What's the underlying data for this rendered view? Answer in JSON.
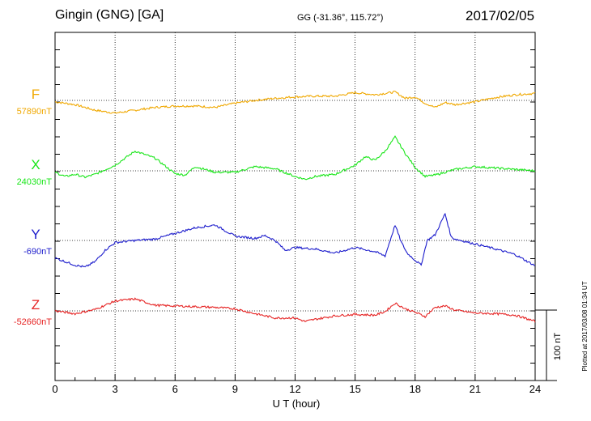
{
  "header": {
    "station": "Gingin (GNG)  [GA]",
    "coords": "GG (-31.36°, 115.72°)",
    "date": "2017/02/05"
  },
  "footer_note": "Plotted at 2017/03/08 01:34 UT",
  "scale_bar_label": "100 nT",
  "chart_data": {
    "type": "line",
    "xlabel": "U T (hour)",
    "xlim": [
      0,
      24
    ],
    "xticks": [
      "0",
      "3",
      "6",
      "9",
      "12",
      "15",
      "18",
      "21",
      "24"
    ],
    "grid": "dotted vertical every 3 h, horizontal baseline per component",
    "scale_nT_per_band": 100,
    "series": [
      {
        "name": "F",
        "baseline_label": "57890nT",
        "color": "#f0a800",
        "points": [
          [
            0,
            -2
          ],
          [
            1,
            -6
          ],
          [
            2,
            -14
          ],
          [
            3,
            -18
          ],
          [
            4,
            -14
          ],
          [
            5,
            -10
          ],
          [
            6,
            -8
          ],
          [
            7,
            -8
          ],
          [
            8,
            -10
          ],
          [
            9,
            -4
          ],
          [
            10,
            0
          ],
          [
            11,
            3
          ],
          [
            12,
            5
          ],
          [
            13,
            6
          ],
          [
            14,
            6
          ],
          [
            15,
            11
          ],
          [
            16,
            8
          ],
          [
            17,
            12
          ],
          [
            17.5,
            3
          ],
          [
            18,
            5
          ],
          [
            18.5,
            -4
          ],
          [
            19,
            -10
          ],
          [
            19.5,
            -3
          ],
          [
            20,
            -6
          ],
          [
            21,
            -2
          ],
          [
            22,
            4
          ],
          [
            23,
            8
          ],
          [
            24,
            10
          ]
        ]
      },
      {
        "name": "X",
        "baseline_label": "24030nT",
        "color": "#19e619",
        "points": [
          [
            0,
            -2
          ],
          [
            0.5,
            -8
          ],
          [
            1,
            -5
          ],
          [
            1.5,
            -9
          ],
          [
            2,
            -5
          ],
          [
            3,
            8
          ],
          [
            4,
            28
          ],
          [
            5,
            18
          ],
          [
            6,
            -4
          ],
          [
            6.5,
            -6
          ],
          [
            7,
            6
          ],
          [
            8,
            -2
          ],
          [
            9,
            -2
          ],
          [
            10,
            6
          ],
          [
            11,
            3
          ],
          [
            12,
            -8
          ],
          [
            12.5,
            -12
          ],
          [
            13,
            -8
          ],
          [
            14,
            -5
          ],
          [
            15,
            8
          ],
          [
            15.5,
            20
          ],
          [
            16,
            15
          ],
          [
            16.5,
            28
          ],
          [
            17,
            48
          ],
          [
            17.5,
            25
          ],
          [
            18,
            5
          ],
          [
            18.5,
            -8
          ],
          [
            19,
            -6
          ],
          [
            19.5,
            -2
          ],
          [
            20,
            2
          ],
          [
            21,
            6
          ],
          [
            22,
            4
          ],
          [
            23,
            2
          ],
          [
            24,
            0
          ]
        ]
      },
      {
        "name": "Y",
        "baseline_label": "-690nT",
        "color": "#1c1ccc",
        "points": [
          [
            0,
            -25
          ],
          [
            1,
            -35
          ],
          [
            1.5,
            -38
          ],
          [
            2,
            -30
          ],
          [
            2.5,
            -14
          ],
          [
            3,
            -3
          ],
          [
            4,
            0
          ],
          [
            5,
            2
          ],
          [
            6,
            10
          ],
          [
            7,
            18
          ],
          [
            8,
            22
          ],
          [
            9,
            6
          ],
          [
            10,
            3
          ],
          [
            10.5,
            7
          ],
          [
            11,
            0
          ],
          [
            11.5,
            -14
          ],
          [
            12,
            -10
          ],
          [
            13,
            -12
          ],
          [
            14,
            -18
          ],
          [
            15,
            -10
          ],
          [
            16,
            -16
          ],
          [
            16.5,
            -22
          ],
          [
            17,
            22
          ],
          [
            17.3,
            -2
          ],
          [
            17.6,
            -18
          ],
          [
            18,
            -28
          ],
          [
            18.3,
            -35
          ],
          [
            18.6,
            0
          ],
          [
            19,
            8
          ],
          [
            19.5,
            38
          ],
          [
            19.8,
            5
          ],
          [
            20,
            2
          ],
          [
            21,
            -5
          ],
          [
            22,
            -12
          ],
          [
            23,
            -20
          ],
          [
            24,
            -36
          ]
        ]
      },
      {
        "name": "Z",
        "baseline_label": "-52660nT",
        "color": "#e62323",
        "points": [
          [
            0,
            0
          ],
          [
            1,
            -4
          ],
          [
            2,
            2
          ],
          [
            3,
            14
          ],
          [
            4,
            17
          ],
          [
            5,
            8
          ],
          [
            6,
            7
          ],
          [
            7,
            6
          ],
          [
            8,
            5
          ],
          [
            9,
            3
          ],
          [
            10,
            -4
          ],
          [
            11,
            -10
          ],
          [
            12,
            -10
          ],
          [
            12.5,
            -15
          ],
          [
            13,
            -12
          ],
          [
            14,
            -7
          ],
          [
            15,
            -5
          ],
          [
            16,
            -6
          ],
          [
            16.5,
            -1
          ],
          [
            17,
            11
          ],
          [
            17.5,
            3
          ],
          [
            18,
            -2
          ],
          [
            18.5,
            -8
          ],
          [
            19,
            5
          ],
          [
            19.5,
            7
          ],
          [
            20,
            1
          ],
          [
            21,
            -3
          ],
          [
            22,
            -4
          ],
          [
            23,
            -6
          ],
          [
            24,
            -15
          ]
        ]
      }
    ]
  }
}
